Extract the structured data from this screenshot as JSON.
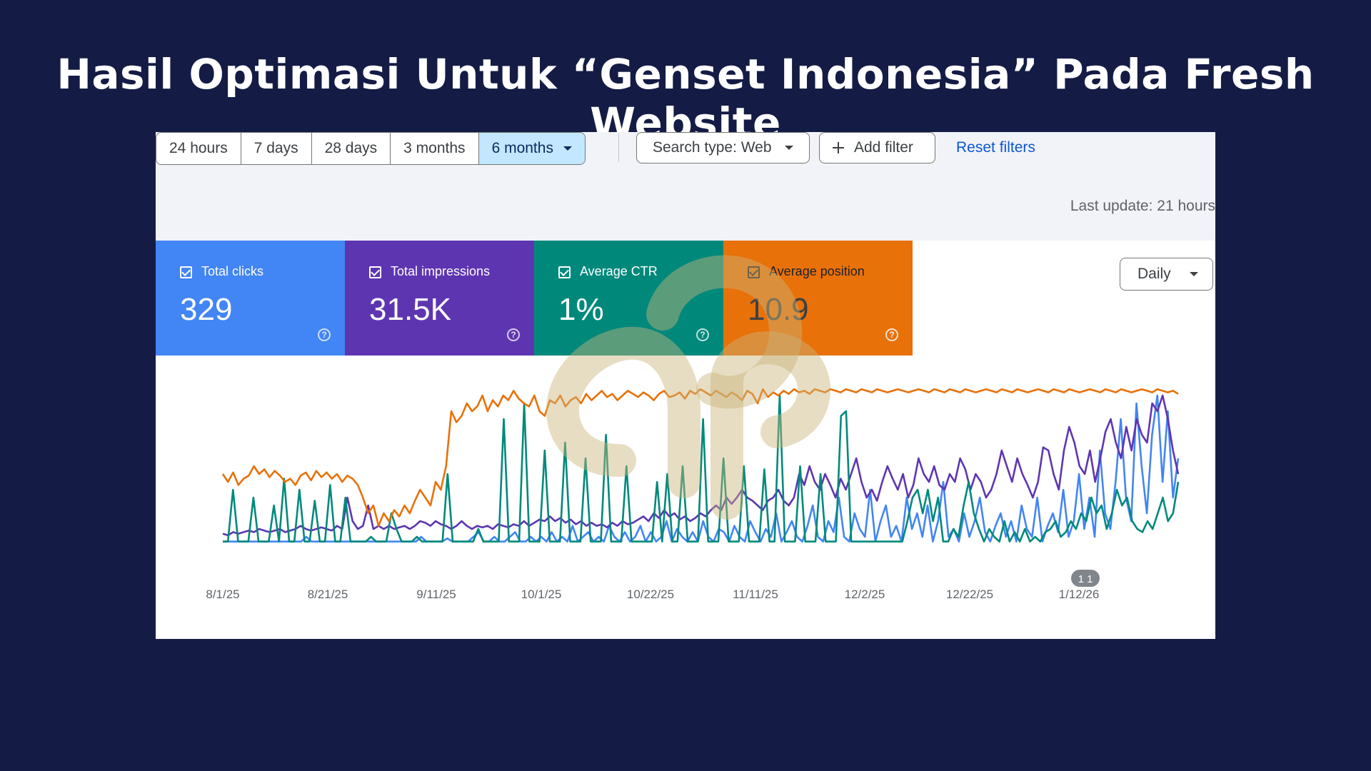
{
  "page": {
    "title": "Hasil Optimasi Untuk “Genset Indonesia” Pada Fresh Website"
  },
  "toolbar": {
    "ranges": [
      "24 hours",
      "7 days",
      "28 days",
      "3 months",
      "6 months"
    ],
    "active_range": "6 months",
    "search_type": "Search type: Web",
    "add_filter": "Add filter",
    "reset_filters": "Reset filters",
    "last_update": "Last update: 21 hours"
  },
  "metrics": [
    {
      "label": "Total clicks",
      "value": "329",
      "color": "#4285f4"
    },
    {
      "label": "Total impressions",
      "value": "31.5K",
      "color": "#5e35b1"
    },
    {
      "label": "Average CTR",
      "value": "1%",
      "color": "#00897b"
    },
    {
      "label": "Average position",
      "value": "10.9",
      "color": "#e8710a"
    }
  ],
  "granularity": "Daily",
  "chart_data": {
    "type": "line",
    "x_tick_labels": [
      "8/1/25",
      "8/21/25",
      "9/11/25",
      "10/1/25",
      "10/22/25",
      "11/11/25",
      "12/2/25",
      "12/22/25",
      "1/12/26"
    ],
    "annotation": "1 1",
    "grid": false,
    "series": [
      {
        "name": "Total clicks",
        "color": "#4285f4",
        "values": [
          0.02,
          0.02,
          0.02,
          0.02,
          0.02,
          0.02,
          0.02,
          0.02,
          0.02,
          0.02,
          0.02,
          0.02,
          0.02,
          0.02,
          0.02,
          0.02,
          0.05,
          0.02,
          0.02,
          0.02,
          0.02,
          0.02,
          0.02,
          0.02,
          0.02,
          0.02,
          0.02,
          0.02,
          0.02,
          0.02,
          0.02,
          0.02,
          0.02,
          0.02,
          0.02,
          0.02,
          0.02,
          0.02,
          0.05,
          0.02,
          0.02,
          0.02,
          0.02,
          0.04,
          0.02,
          0.02,
          0.02,
          0.02,
          0.05,
          0.08,
          0.02,
          0.02,
          0.05,
          0.02,
          0.02,
          0.05,
          0.08,
          0.02,
          0.02,
          0.05,
          0.02,
          0.05,
          0.02,
          0.08,
          0.02,
          0.05,
          0.02,
          0.12,
          0.02,
          0.05,
          0.08,
          0.02,
          0.05,
          0.02,
          0.12,
          0.05,
          0.02,
          0.08,
          0.02,
          0.05,
          0.12,
          0.02,
          0.08,
          0.02,
          0.05,
          0.15,
          0.02,
          0.1,
          0.05,
          0.02,
          0.08,
          0.02,
          0.15,
          0.05,
          0.02,
          0.1,
          0.08,
          0.02,
          0.12,
          0.05,
          0.02,
          0.15,
          0.08,
          0.02,
          0.1,
          0.05,
          0.2,
          0.02,
          0.08,
          0.15,
          0.05,
          0.02,
          0.12,
          0.25,
          0.05,
          0.02,
          0.15,
          0.08,
          0.3,
          0.05,
          0.02,
          0.2,
          0.1,
          0.05,
          0.35,
          0.02,
          0.15,
          0.25,
          0.05,
          0.12,
          0.02,
          0.3,
          0.1,
          0.2,
          0.05,
          0.25,
          0.02,
          0.15,
          0.4,
          0.05,
          0.1,
          0.02,
          0.2,
          0.05,
          0.15,
          0.3,
          0.08,
          0.02,
          0.12,
          0.2,
          0.05,
          0.15,
          0.02,
          0.25,
          0.1,
          0.05,
          0.3,
          0.02,
          0.12,
          0.2,
          0.08,
          0.35,
          0.05,
          0.15,
          0.45,
          0.1,
          0.3,
          0.05,
          0.6,
          0.2,
          0.1,
          0.4,
          0.8,
          0.3,
          0.15,
          0.9,
          0.5,
          0.2,
          0.7,
          0.95,
          0.4,
          0.85,
          0.3,
          0.55
        ]
      },
      {
        "name": "Total impressions",
        "color": "#5e35b1",
        "values": [
          0.07,
          0.06,
          0.08,
          0.07,
          0.08,
          0.09,
          0.08,
          0.1,
          0.09,
          0.08,
          0.09,
          0.1,
          0.08,
          0.09,
          0.1,
          0.12,
          0.1,
          0.09,
          0.1,
          0.11,
          0.1,
          0.09,
          0.12,
          0.1,
          0.3,
          0.15,
          0.1,
          0.12,
          0.25,
          0.1,
          0.12,
          0.1,
          0.12,
          0.1,
          0.11,
          0.12,
          0.1,
          0.12,
          0.15,
          0.14,
          0.12,
          0.15,
          0.13,
          0.12,
          0.1,
          0.12,
          0.15,
          0.12,
          0.1,
          0.12,
          0.11,
          0.12,
          0.1,
          0.13,
          0.12,
          0.11,
          0.13,
          0.12,
          0.15,
          0.12,
          0.14,
          0.16,
          0.15,
          0.18,
          0.15,
          0.17,
          0.14,
          0.16,
          0.13,
          0.15,
          0.12,
          0.14,
          0.12,
          0.13,
          0.11,
          0.14,
          0.12,
          0.15,
          0.13,
          0.14,
          0.16,
          0.18,
          0.15,
          0.2,
          0.17,
          0.22,
          0.18,
          0.2,
          0.16,
          0.18,
          0.15,
          0.17,
          0.2,
          0.18,
          0.22,
          0.25,
          0.22,
          0.3,
          0.26,
          0.3,
          0.35,
          0.3,
          0.28,
          0.25,
          0.22,
          0.28,
          0.3,
          0.35,
          0.28,
          0.25,
          0.3,
          0.45,
          0.38,
          0.5,
          0.4,
          0.35,
          0.45,
          0.38,
          0.3,
          0.42,
          0.35,
          0.45,
          0.55,
          0.4,
          0.3,
          0.35,
          0.28,
          0.4,
          0.5,
          0.42,
          0.35,
          0.45,
          0.3,
          0.38,
          0.55,
          0.45,
          0.4,
          0.5,
          0.38,
          0.35,
          0.45,
          0.4,
          0.55,
          0.48,
          0.35,
          0.45,
          0.4,
          0.3,
          0.35,
          0.45,
          0.6,
          0.5,
          0.4,
          0.55,
          0.45,
          0.38,
          0.3,
          0.4,
          0.62,
          0.6,
          0.45,
          0.35,
          0.6,
          0.75,
          0.65,
          0.5,
          0.45,
          0.6,
          0.4,
          0.55,
          0.72,
          0.8,
          0.65,
          0.55,
          0.75,
          0.6,
          0.8,
          0.7,
          0.65,
          0.9,
          0.85,
          0.95,
          0.8,
          0.6,
          0.45
        ]
      },
      {
        "name": "Average CTR",
        "color": "#00897b",
        "values": [
          0.02,
          0.02,
          0.35,
          0.02,
          0.02,
          0.02,
          0.3,
          0.02,
          0.02,
          0.02,
          0.25,
          0.02,
          0.42,
          0.02,
          0.02,
          0.35,
          0.02,
          0.02,
          0.28,
          0.02,
          0.02,
          0.38,
          0.02,
          0.02,
          0.3,
          0.02,
          0.02,
          0.02,
          0.02,
          0.05,
          0.02,
          0.02,
          0.02,
          0.2,
          0.1,
          0.02,
          0.02,
          0.02,
          0.05,
          0.02,
          0.02,
          0.02,
          0.02,
          0.02,
          0.45,
          0.02,
          0.02,
          0.02,
          0.02,
          0.02,
          0.1,
          0.02,
          0.02,
          0.02,
          0.02,
          0.8,
          0.02,
          0.02,
          0.02,
          0.9,
          0.02,
          0.02,
          0.02,
          0.6,
          0.02,
          0.02,
          0.02,
          0.65,
          0.02,
          0.02,
          0.02,
          0.55,
          0.02,
          0.02,
          0.02,
          0.7,
          0.02,
          0.02,
          0.02,
          0.5,
          0.02,
          0.02,
          0.02,
          0.02,
          0.02,
          0.4,
          0.02,
          0.45,
          0.02,
          0.02,
          0.5,
          0.02,
          0.02,
          0.02,
          0.8,
          0.02,
          0.02,
          0.02,
          0.55,
          0.02,
          0.02,
          0.02,
          0.5,
          0.02,
          0.02,
          0.02,
          0.48,
          0.02,
          0.02,
          0.95,
          0.02,
          0.02,
          0.02,
          0.5,
          0.02,
          0.02,
          0.02,
          0.45,
          0.02,
          0.02,
          0.02,
          0.82,
          0.85,
          0.02,
          0.02,
          0.02,
          0.02,
          0.02,
          0.02,
          0.02,
          0.02,
          0.02,
          0.02,
          0.02,
          0.15,
          0.3,
          0.35,
          0.2,
          0.35,
          0.15,
          0.3,
          0.02,
          0.02,
          0.1,
          0.05,
          0.25,
          0.4,
          0.2,
          0.1,
          0.02,
          0.1,
          0.05,
          0.02,
          0.15,
          0.02,
          0.08,
          0.02,
          0.1,
          0.02,
          0.05,
          0.02,
          0.08,
          0.1,
          0.15,
          0.05,
          0.08,
          0.15,
          0.1,
          0.2,
          0.15,
          0.3,
          0.2,
          0.25,
          0.1,
          0.2,
          0.35,
          0.25,
          0.3,
          0.15,
          0.1,
          0.08,
          0.15,
          0.1,
          0.2,
          0.3,
          0.15,
          0.2,
          0.4
        ]
      },
      {
        "name": "Average position",
        "color": "#e8710a",
        "values": [
          0.45,
          0.4,
          0.46,
          0.38,
          0.42,
          0.44,
          0.5,
          0.45,
          0.48,
          0.43,
          0.47,
          0.44,
          0.4,
          0.42,
          0.38,
          0.44,
          0.46,
          0.41,
          0.47,
          0.43,
          0.46,
          0.42,
          0.45,
          0.4,
          0.44,
          0.42,
          0.38,
          0.3,
          0.2,
          0.25,
          0.12,
          0.2,
          0.15,
          0.22,
          0.18,
          0.25,
          0.2,
          0.28,
          0.35,
          0.3,
          0.25,
          0.4,
          0.35,
          0.5,
          0.85,
          0.78,
          0.82,
          0.9,
          0.85,
          0.88,
          0.95,
          0.85,
          0.92,
          0.88,
          0.95,
          0.92,
          0.98,
          0.93,
          0.9,
          0.88,
          0.95,
          0.85,
          0.82,
          0.92,
          0.9,
          0.95,
          0.88,
          0.92,
          0.94,
          0.9,
          0.96,
          0.92,
          0.95,
          0.98,
          0.94,
          0.96,
          0.92,
          0.95,
          0.98,
          0.96,
          0.94,
          0.97,
          0.95,
          0.92,
          0.96,
          0.98,
          0.94,
          0.95,
          0.97,
          0.93,
          0.98,
          0.96,
          0.99,
          0.97,
          0.95,
          0.98,
          0.96,
          0.94,
          0.97,
          0.95,
          0.92,
          0.98,
          0.96,
          0.9,
          0.99,
          0.94,
          0.97,
          0.95,
          0.98,
          0.96,
          0.99,
          0.97,
          0.98,
          0.96,
          0.99,
          0.98,
          0.97,
          0.99,
          0.98,
          0.97,
          0.99,
          0.98,
          0.97,
          0.99,
          0.98,
          0.97,
          0.99,
          0.98,
          0.97,
          0.98,
          0.99,
          0.98,
          0.97,
          0.98,
          0.99,
          0.98,
          0.97,
          0.99,
          0.98,
          0.97,
          0.99,
          0.98,
          0.97,
          0.99,
          0.98,
          0.97,
          0.98,
          0.99,
          0.98,
          0.97,
          0.99,
          0.98,
          0.97,
          0.99,
          0.98,
          0.97,
          0.98,
          0.99,
          0.98,
          0.97,
          0.99,
          0.98,
          0.97,
          0.99,
          0.98,
          0.97,
          0.98,
          0.99,
          0.98,
          0.97,
          0.99,
          0.98,
          0.97,
          0.99,
          0.98,
          0.97,
          0.98,
          0.99,
          0.98,
          0.97,
          0.99,
          0.98,
          0.97,
          0.98,
          0.96
        ]
      }
    ]
  }
}
